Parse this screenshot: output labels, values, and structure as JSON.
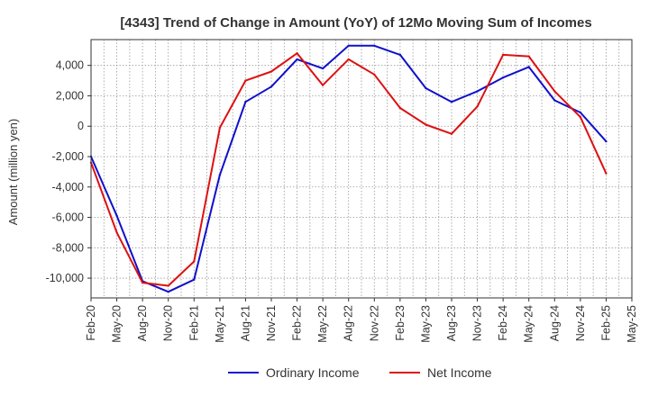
{
  "chart_data": {
    "type": "line",
    "title": "[4343]  Trend of Change in Amount (YoY) of 12Mo Moving Sum of Incomes",
    "xlabel": "",
    "ylabel": "Amount (million yen)",
    "ylim": [
      -11300,
      5700
    ],
    "yticks": [
      -10000,
      -8000,
      -6000,
      -4000,
      -2000,
      0,
      2000,
      4000
    ],
    "ytick_labels": [
      "-10,000",
      "-8,000",
      "-6,000",
      "-4,000",
      "-2,000",
      "0",
      "2,000",
      "4,000"
    ],
    "x": [
      "Feb-20",
      "Mar-20",
      "Apr-20",
      "May-20",
      "Jun-20",
      "Jul-20",
      "Aug-20",
      "Sep-20",
      "Oct-20",
      "Nov-20",
      "Dec-20",
      "Jan-21",
      "Feb-21",
      "Mar-21",
      "Apr-21",
      "May-21",
      "Jun-21",
      "Jul-21",
      "Aug-21",
      "Sep-21",
      "Oct-21",
      "Nov-21",
      "Dec-21",
      "Jan-22",
      "Feb-22",
      "Mar-22",
      "Apr-22",
      "May-22",
      "Jun-22",
      "Jul-22",
      "Aug-22",
      "Sep-22",
      "Oct-22",
      "Nov-22",
      "Dec-22",
      "Jan-23",
      "Feb-23",
      "Mar-23",
      "Apr-23",
      "May-23",
      "Jun-23",
      "Jul-23",
      "Aug-23",
      "Sep-23",
      "Oct-23",
      "Nov-23",
      "Dec-23",
      "Jan-24",
      "Feb-24",
      "Mar-24",
      "Apr-24",
      "May-24",
      "Jun-24",
      "Jul-24",
      "Aug-24",
      "Sep-24",
      "Oct-24",
      "Nov-24",
      "Dec-24",
      "Jan-25",
      "Feb-25",
      "Mar-25",
      "Apr-25",
      "May-25"
    ],
    "xtick_labels": [
      "Feb-20",
      "May-20",
      "Aug-20",
      "Nov-20",
      "Feb-21",
      "May-21",
      "Aug-21",
      "Nov-21",
      "Feb-22",
      "May-22",
      "Aug-22",
      "Nov-22",
      "Feb-23",
      "May-23",
      "Aug-23",
      "Nov-23",
      "Feb-24",
      "May-24",
      "Aug-24",
      "Nov-24",
      "Feb-25",
      "May-25"
    ],
    "grid": true,
    "legend_position": "bottom",
    "series": [
      {
        "name": "Ordinary Income",
        "color": "#1010cc",
        "x": [
          "Feb-20",
          "May-20",
          "Aug-20",
          "Nov-20",
          "Feb-21",
          "May-21",
          "Aug-21",
          "Nov-21",
          "Feb-22",
          "May-22",
          "Aug-22",
          "Nov-22",
          "Feb-23",
          "May-23",
          "Aug-23",
          "Nov-23",
          "Feb-24",
          "May-24",
          "Aug-24",
          "Nov-24",
          "Feb-25"
        ],
        "values": [
          -2000,
          -5900,
          -10200,
          -10900,
          -10100,
          -3200,
          1600,
          2600,
          4400,
          3800,
          5300,
          5300,
          4700,
          2500,
          1600,
          2300,
          3200,
          3900,
          1700,
          900,
          -1000
        ]
      },
      {
        "name": "Net Income",
        "color": "#dd1111",
        "x": [
          "Feb-20",
          "May-20",
          "Aug-20",
          "Nov-20",
          "Feb-21",
          "May-21",
          "Aug-21",
          "Nov-21",
          "Feb-22",
          "May-22",
          "Aug-22",
          "Nov-22",
          "Feb-23",
          "May-23",
          "Aug-23",
          "Nov-23",
          "Feb-24",
          "May-24",
          "Aug-24",
          "Nov-24",
          "Feb-25"
        ],
        "values": [
          -2400,
          -7000,
          -10300,
          -10500,
          -8900,
          -100,
          3000,
          3600,
          4800,
          2700,
          4400,
          3400,
          1200,
          100,
          -500,
          1300,
          4700,
          4600,
          2300,
          600,
          -3100
        ]
      }
    ]
  }
}
